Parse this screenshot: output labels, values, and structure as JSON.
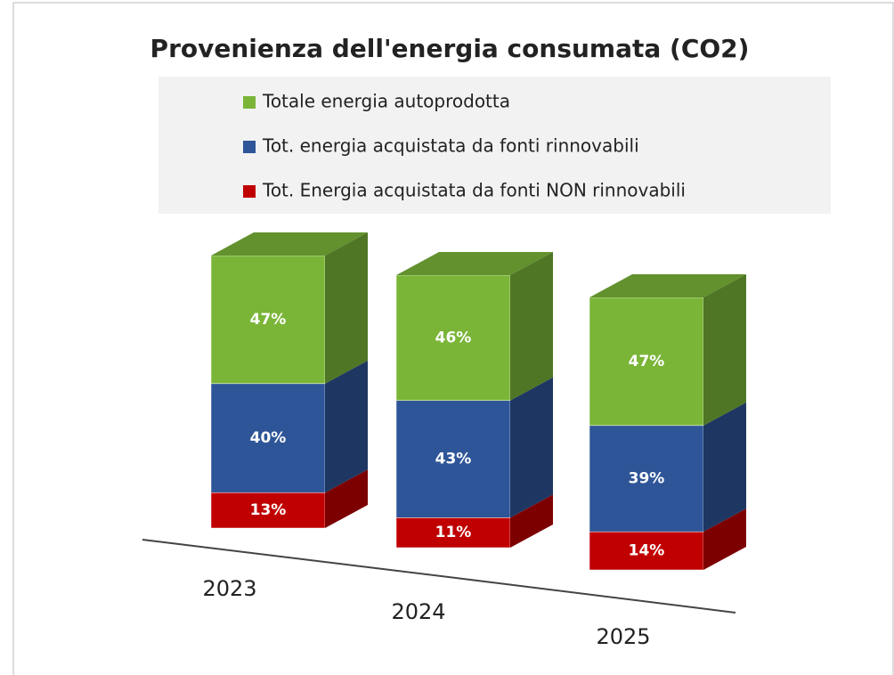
{
  "chart_data": {
    "type": "bar3d_stacked",
    "title": "Provenienza dell'energia consumata (CO2)",
    "categories": [
      "2023",
      "2024",
      "2025"
    ],
    "series": [
      {
        "name": "Tot. Energia acquistata da fonti NON rinnovabili",
        "color": "#c00000",
        "values": [
          13,
          11,
          14
        ],
        "value_labels": [
          "13%",
          "11%",
          "14%"
        ]
      },
      {
        "name": "Tot. energia acquistata da fonti rinnovabili",
        "color": "#2e5597",
        "values": [
          40,
          43,
          39
        ],
        "value_labels": [
          "40%",
          "43%",
          "39%"
        ]
      },
      {
        "name": "Totale energia autoprodotta",
        "color": "#7ab538",
        "values": [
          47,
          46,
          47
        ],
        "value_labels": [
          "47%",
          "46%",
          "47%"
        ]
      }
    ]
  }
}
